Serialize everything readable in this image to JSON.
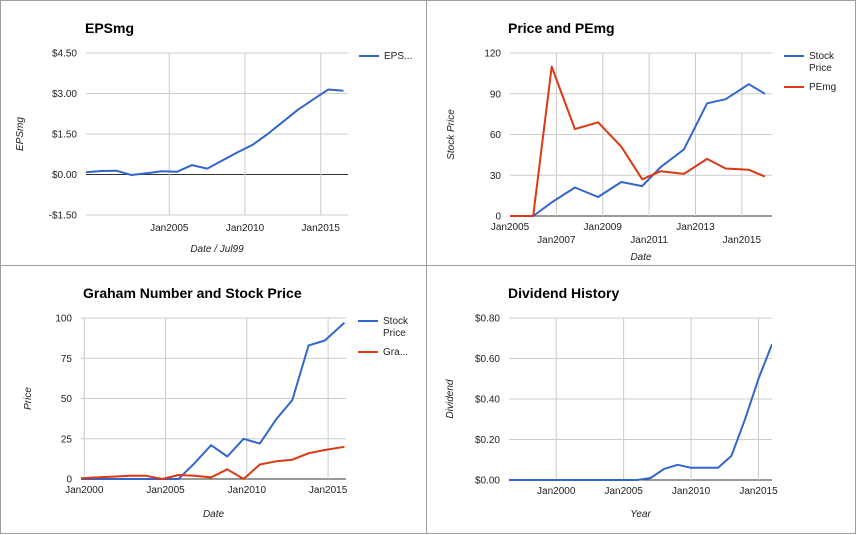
{
  "chart_data": [
    {
      "type": "line",
      "title": "EPSmg",
      "xlabel": "Date / Jul99",
      "ylabel": "EPSmg",
      "xlim": [
        1999.5,
        2016.8
      ],
      "ylim": [
        -1.5,
        4.5
      ],
      "yticks": [
        -1.5,
        0,
        1.5,
        3,
        4.5
      ],
      "ytick_labels": [
        "-$1.50",
        "$0.00",
        "$1.50",
        "$3.00",
        "$4.50"
      ],
      "xticks": [
        2005,
        2010,
        2015
      ],
      "xtick_labels": [
        "Jan2005",
        "Jan2010",
        "Jan2015"
      ],
      "grid": true,
      "legend_position": "right",
      "colors": [
        "#3366cc"
      ],
      "series": [
        {
          "name": "EPS...",
          "x": [
            1999.5,
            2000.5,
            2001.5,
            2002.5,
            2003.5,
            2004.5,
            2005.5,
            2006.5,
            2007.5,
            2008.5,
            2009.5,
            2010.5,
            2011.5,
            2012.5,
            2013.5,
            2014.5,
            2015.5,
            2016.5
          ],
          "y": [
            0.08,
            0.13,
            0.14,
            -0.02,
            0.05,
            0.12,
            0.1,
            0.35,
            0.22,
            0.52,
            0.82,
            1.1,
            1.5,
            1.95,
            2.4,
            2.78,
            3.15,
            3.1
          ]
        }
      ]
    },
    {
      "type": "line",
      "title": "Price and PEmg",
      "xlabel": "Date",
      "ylabel": "Stock Price",
      "xlim": [
        2005,
        2016.3
      ],
      "ylim": [
        0,
        120
      ],
      "yticks": [
        0,
        30,
        60,
        90,
        120
      ],
      "ytick_labels": [
        "0",
        "30",
        "60",
        "90",
        "120"
      ],
      "xticks": [
        2005,
        2007,
        2009,
        2011,
        2013,
        2015
      ],
      "xtick_labels": [
        "Jan2005",
        "Jan2007",
        "Jan2009",
        "Jan2011",
        "Jan2013",
        "Jan2015"
      ],
      "grid": true,
      "legend_position": "right",
      "colors": [
        "#3366cc",
        "#dc3912"
      ],
      "series": [
        {
          "name": "Stock Price",
          "x": [
            2005,
            2006,
            2006.8,
            2007.8,
            2008.8,
            2009.8,
            2010.7,
            2011.5,
            2012.5,
            2013.5,
            2014.3,
            2015.3,
            2016
          ],
          "y": [
            0,
            0,
            10,
            21,
            14,
            25,
            22,
            36,
            49,
            83,
            86,
            97,
            90
          ]
        },
        {
          "name": "PEmg",
          "x": [
            2005,
            2006,
            2006.8,
            2007.8,
            2008.8,
            2009.8,
            2010.7,
            2011.5,
            2012.5,
            2013.5,
            2014.3,
            2015.3,
            2016
          ],
          "y": [
            0,
            0,
            110,
            64,
            69,
            51,
            27,
            33,
            31,
            42,
            35,
            34,
            29
          ]
        }
      ]
    },
    {
      "type": "line",
      "title": "Graham Number and Stock Price",
      "xlabel": "Date",
      "ylabel": "Price",
      "xlim": [
        1999.8,
        2016.1
      ],
      "ylim": [
        0,
        100
      ],
      "yticks": [
        0,
        25,
        50,
        75,
        100
      ],
      "ytick_labels": [
        "0",
        "25",
        "50",
        "75",
        "100"
      ],
      "xticks": [
        2000,
        2005,
        2010,
        2015
      ],
      "xtick_labels": [
        "Jan2000",
        "Jan2005",
        "Jan2010",
        "Jan2015"
      ],
      "grid": true,
      "legend_position": "right",
      "colors": [
        "#3366cc",
        "#dc3912"
      ],
      "series": [
        {
          "name": "Stock Price",
          "x": [
            1999.8,
            2000.8,
            2001.8,
            2002.8,
            2003.8,
            2004.8,
            2005.8,
            2006.8,
            2007.8,
            2008.8,
            2009.8,
            2010.8,
            2011.8,
            2012.8,
            2013.8,
            2014.8,
            2016
          ],
          "y": [
            0,
            0,
            0,
            0,
            0,
            0,
            0,
            10,
            21,
            14,
            25,
            22,
            37,
            49,
            83,
            86,
            97
          ]
        },
        {
          "name": "Gra...",
          "x": [
            1999.8,
            2000.8,
            2001.8,
            2002.8,
            2003.8,
            2004.8,
            2005.8,
            2006.8,
            2007.8,
            2008.8,
            2009.8,
            2010.8,
            2011.8,
            2012.8,
            2013.8,
            2014.8,
            2016
          ],
          "y": [
            0.5,
            1,
            1.5,
            2,
            2,
            0,
            2.5,
            2,
            1,
            6,
            0,
            9,
            11,
            12,
            16,
            18,
            20
          ]
        }
      ]
    },
    {
      "type": "line",
      "title": "Dividend History",
      "xlabel": "Year",
      "ylabel": "Dividend",
      "xlim": [
        1996.5,
        2016
      ],
      "ylim": [
        0,
        0.8
      ],
      "yticks": [
        0,
        0.2,
        0.4,
        0.6,
        0.8
      ],
      "ytick_labels": [
        "$0.00",
        "$0.20",
        "$0.40",
        "$0.60",
        "$0.80"
      ],
      "xticks": [
        2000,
        2005,
        2010,
        2015
      ],
      "xtick_labels": [
        "Jan2000",
        "Jan2005",
        "Jan2010",
        "Jan2015"
      ],
      "grid": true,
      "legend_position": "none",
      "colors": [
        "#3366cc"
      ],
      "series": [
        {
          "x": [
            1996.5,
            2005,
            2006,
            2007,
            2008,
            2009,
            2010,
            2011,
            2012,
            2013,
            2014,
            2015,
            2016
          ],
          "y": [
            0,
            0,
            0,
            0.01,
            0.055,
            0.075,
            0.06,
            0.06,
            0.06,
            0.12,
            0.3,
            0.5,
            0.67
          ]
        }
      ]
    }
  ]
}
